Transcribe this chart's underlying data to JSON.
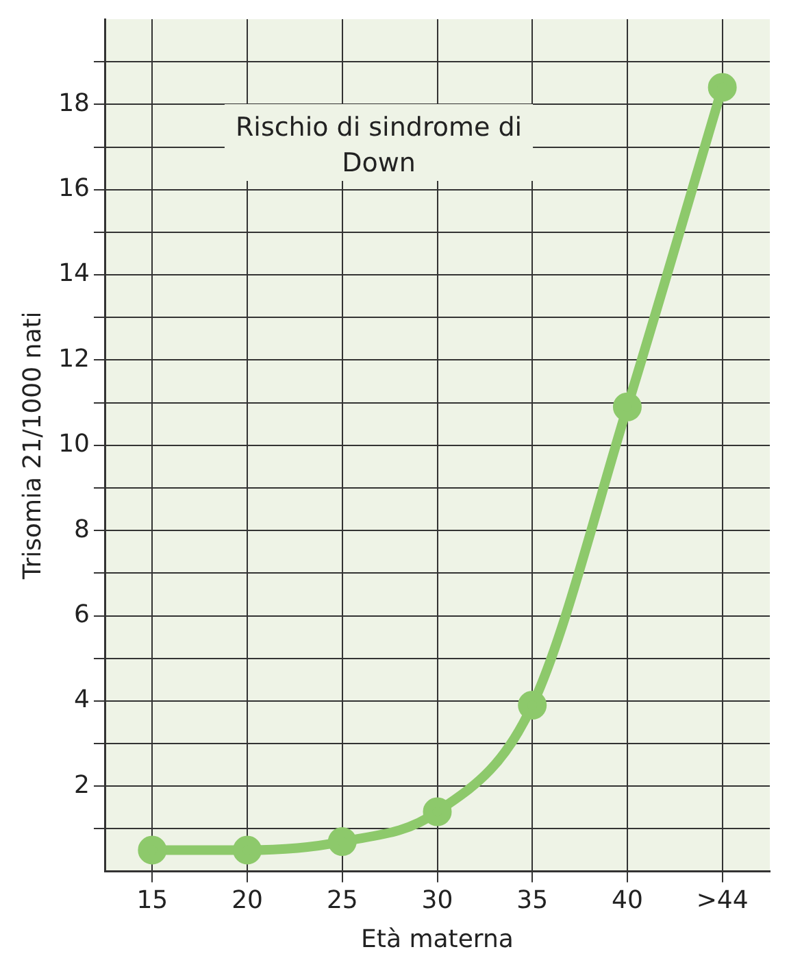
{
  "chart_data": {
    "type": "line",
    "title": "Rischio di sindrome di Down",
    "xlabel": "Età materna",
    "ylabel": "Trisomia 21/1000 nati",
    "categories": [
      "15",
      "20",
      "25",
      "30",
      "35",
      "40",
      ">44"
    ],
    "series": [
      {
        "color": "#8dc96b",
        "values": [
          0.5,
          0.5,
          0.7,
          1.4,
          3.9,
          10.9,
          18.4
        ]
      }
    ],
    "ylim": [
      0,
      20
    ],
    "yticks": [
      {
        "value": 1,
        "label": null
      },
      2,
      {
        "value": 3,
        "label": null
      },
      4,
      {
        "value": 5,
        "label": null
      },
      6,
      {
        "value": 7,
        "label": null
      },
      8,
      {
        "value": 9,
        "label": null
      },
      10,
      {
        "value": 11,
        "label": null
      },
      12,
      {
        "value": 13,
        "label": null
      },
      14,
      {
        "value": 15,
        "label": null
      },
      16,
      {
        "value": 17,
        "label": null
      },
      18,
      {
        "value": 19,
        "label": null
      }
    ],
    "grid": true,
    "legend": false,
    "marker": "circle",
    "line_style": "solid"
  }
}
